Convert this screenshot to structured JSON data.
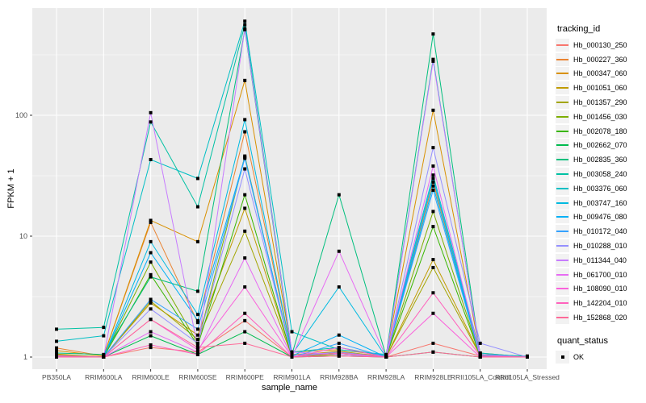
{
  "chart_data": {
    "type": "line",
    "title": "",
    "xlabel": "sample_name",
    "ylabel": "FPKM + 1",
    "y_scale": "log10",
    "y_tick_labels": [
      "1",
      "10",
      "100"
    ],
    "y_tick_values": [
      1,
      10,
      100
    ],
    "ylim": [
      0.79,
      770
    ],
    "grid": "on",
    "legend_position": "right",
    "legend_title": "tracking_id",
    "point_legend_title": "quant_status",
    "point_legend_items": [
      "OK"
    ],
    "categories": [
      "PB350LA",
      "RRIM600LA",
      "RRIM600LE",
      "RRIM600SE",
      "RRIM600PE",
      "RRIM901LA",
      "RRIM928BA",
      "RRIM928LA",
      "RRIM928LE",
      "RRII105LA_Control",
      "RRII105LA_Stressed"
    ],
    "series": [
      {
        "name": "Hb_000130_250",
        "color": "#F8766D",
        "values": [
          1.05,
          1.0,
          1.2,
          1.1,
          2.0,
          1.0,
          1.05,
          1.0,
          1.3,
          1.02,
          1.0
        ]
      },
      {
        "name": "Hb_000227_360",
        "color": "#EA8331",
        "values": [
          1.19,
          1.02,
          13.0,
          1.93,
          73,
          1.05,
          1.1,
          1.02,
          28,
          1.05,
          1.0
        ]
      },
      {
        "name": "Hb_000347_060",
        "color": "#D89000",
        "values": [
          1.13,
          1.02,
          13.5,
          9.0,
          194,
          1.1,
          1.15,
          1.03,
          110,
          1.08,
          1.0
        ]
      },
      {
        "name": "Hb_001051_060",
        "color": "#C09B00",
        "values": [
          1.06,
          1.0,
          2.8,
          1.52,
          17,
          1.02,
          1.12,
          1.0,
          6.4,
          1.04,
          1.0
        ]
      },
      {
        "name": "Hb_001357_290",
        "color": "#A3A500",
        "values": [
          1.04,
          1.0,
          2.9,
          1.4,
          11,
          1.02,
          1.08,
          1.0,
          5.5,
          1.03,
          1.0
        ]
      },
      {
        "name": "Hb_001456_030",
        "color": "#7CAE00",
        "values": [
          1.0,
          1.0,
          6.1,
          1.3,
          46,
          1.0,
          1.05,
          1.0,
          16,
          1.02,
          1.0
        ]
      },
      {
        "name": "Hb_002078_180",
        "color": "#39B600",
        "values": [
          1.02,
          1.0,
          4.8,
          1.25,
          22,
          1.0,
          1.1,
          1.0,
          12,
          1.02,
          1.0
        ]
      },
      {
        "name": "Hb_002662_070",
        "color": "#00BB4E",
        "values": [
          1.0,
          1.0,
          1.5,
          1.05,
          1.62,
          1.0,
          1.02,
          1.0,
          1.1,
          1.0,
          1.0
        ]
      },
      {
        "name": "Hb_002835_360",
        "color": "#00BF7D",
        "values": [
          1.08,
          1.05,
          4.6,
          3.5,
          510,
          1.05,
          22,
          1.02,
          470,
          1.05,
          1.02
        ]
      },
      {
        "name": "Hb_003058_240",
        "color": "#00C1A3",
        "values": [
          1.7,
          1.76,
          88,
          17.5,
          560,
          1.1,
          1.2,
          1.02,
          290,
          1.05,
          1.0
        ]
      },
      {
        "name": "Hb_003376_060",
        "color": "#00BFC4",
        "values": [
          1.35,
          1.5,
          43,
          30,
          600,
          1.62,
          1.15,
          1.05,
          32,
          1.08,
          1.0
        ]
      },
      {
        "name": "Hb_003747_160",
        "color": "#00BAE0",
        "values": [
          1.0,
          1.0,
          9.0,
          2.25,
          92,
          1.05,
          3.8,
          1.0,
          26,
          1.03,
          1.0
        ]
      },
      {
        "name": "Hb_009476_080",
        "color": "#00B0F6",
        "values": [
          1.02,
          1.0,
          7.3,
          2.0,
          45,
          1.02,
          1.52,
          1.0,
          30,
          1.02,
          1.0
        ]
      },
      {
        "name": "Hb_010172_040",
        "color": "#35A2FF",
        "values": [
          1.0,
          1.0,
          3.0,
          1.7,
          44,
          1.0,
          1.3,
          1.0,
          24,
          1.0,
          1.0
        ]
      },
      {
        "name": "Hb_010288_010",
        "color": "#9590FF",
        "values": [
          1.03,
          1.0,
          2.5,
          1.3,
          36,
          1.02,
          1.1,
          1.0,
          54,
          1.3,
          1.0
        ]
      },
      {
        "name": "Hb_011344_040",
        "color": "#C77CFF",
        "values": [
          1.02,
          1.0,
          105,
          1.2,
          520,
          1.1,
          1.05,
          1.0,
          280,
          1.05,
          1.0
        ]
      },
      {
        "name": "Hb_061700_010",
        "color": "#E76BF3",
        "values": [
          1.0,
          1.0,
          1.62,
          1.1,
          6.6,
          1.0,
          7.5,
          1.0,
          38,
          1.02,
          1.0
        ]
      },
      {
        "name": "Hb_108090_010",
        "color": "#FA62DB",
        "values": [
          1.0,
          1.0,
          2.05,
          1.15,
          3.8,
          1.0,
          1.2,
          1.0,
          2.3,
          1.0,
          1.0
        ]
      },
      {
        "name": "Hb_142204_010",
        "color": "#FF62BC",
        "values": [
          1.02,
          1.0,
          1.26,
          1.05,
          2.3,
          1.0,
          1.08,
          1.0,
          3.4,
          1.02,
          1.0
        ]
      },
      {
        "name": "Hb_152868_020",
        "color": "#FF6A98",
        "values": [
          1.0,
          1.0,
          2.05,
          1.2,
          1.3,
          1.0,
          1.02,
          1.0,
          1.1,
          1.0,
          1.0
        ]
      }
    ]
  },
  "theme": {
    "panel_background": "#EBEBEB",
    "grid_color": "#FFFFFF",
    "axis_text_color": "#4D4D4D",
    "tick_mark_color": "#333333",
    "point_color": "#000000",
    "legend_key_background": "#F2F2F2"
  }
}
